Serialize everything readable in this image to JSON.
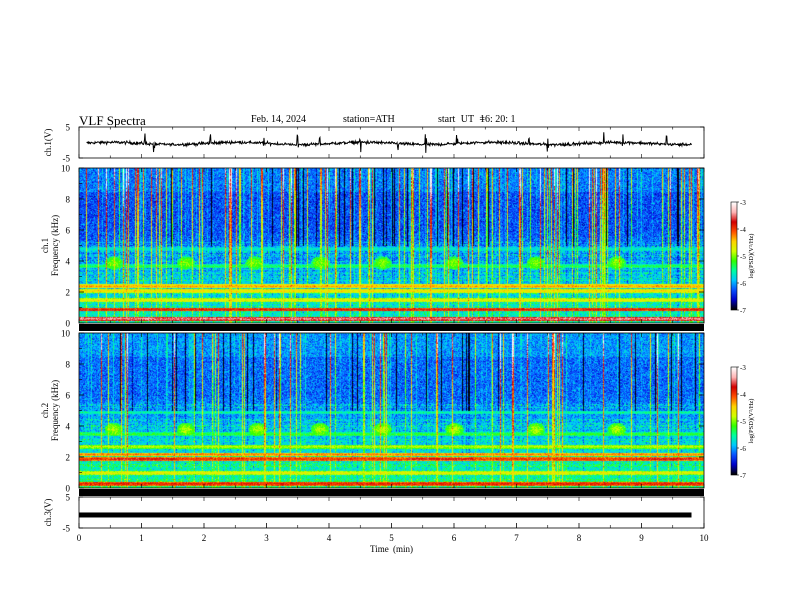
{
  "header": {
    "title": "VLF  Spectra",
    "date": "Feb. 14, 2024",
    "station": "station=ATH",
    "start_label": "start  UT  =",
    "start_time": "16: 20: 1"
  },
  "colors": {
    "axis": "#000000",
    "trace": "#000000",
    "spectrogram_scale": [
      "#000000",
      "#0000c8",
      "#0a50ff",
      "#00c8ff",
      "#00ffa0",
      "#32ff00",
      "#d2ff00",
      "#ffd200",
      "#ff5000",
      "#d20000",
      "#ffb4b4",
      "#ffffff"
    ]
  },
  "chart_data": [
    {
      "id": "ch1-waveform",
      "type": "line",
      "ylabel": "ch.1(V)",
      "ylim": [
        -5,
        5
      ],
      "yticks": [
        "5",
        "-5"
      ],
      "xlim": [
        0,
        10
      ],
      "baseline_v": -0.3,
      "burst_minutes": [
        1.05,
        1.2,
        2.1,
        2.95,
        3.5,
        3.85,
        4.5,
        5.1,
        5.55,
        6.05,
        7.2,
        7.5,
        8.4,
        8.7,
        9.4
      ]
    },
    {
      "id": "ch1-spectrogram",
      "type": "heatmap",
      "ylabel_line1": "ch.1",
      "ylabel_line2": "Frequency (kHz)",
      "ylim": [
        0,
        10
      ],
      "yticks": [
        "10",
        "8",
        "6",
        "4",
        "2",
        "0"
      ],
      "xlim": [
        0,
        10
      ],
      "colorbar": {
        "label": "log(PSD)(V²/Hz)",
        "range": [
          -7,
          -3
        ],
        "ticks": [
          "-3",
          "-4",
          "-5",
          "-6",
          "-7"
        ]
      },
      "background_log_psd": -6.3,
      "bands": [
        {
          "freq_khz": 0.3,
          "log_psd": -3.4
        },
        {
          "freq_khz": 0.9,
          "log_psd": -3.8
        },
        {
          "freq_khz": 1.5,
          "log_psd": -4.6
        },
        {
          "freq_khz": 2.1,
          "log_psd": -4.5
        },
        {
          "freq_khz": 2.4,
          "log_psd": -4.3
        },
        {
          "freq_khz": 3.7,
          "log_psd": -5.3
        },
        {
          "freq_khz": 4.8,
          "log_psd": -5.6
        }
      ],
      "chorus_bursts": [
        {
          "minute": 0.55,
          "freq_khz": 3.9,
          "log_psd": -5.0
        },
        {
          "minute": 1.7,
          "freq_khz": 3.9,
          "log_psd": -5.0
        },
        {
          "minute": 2.8,
          "freq_khz": 3.9,
          "log_psd": -5.0
        },
        {
          "minute": 3.85,
          "freq_khz": 3.9,
          "log_psd": -5.0
        },
        {
          "minute": 4.85,
          "freq_khz": 3.9,
          "log_psd": -5.0
        },
        {
          "minute": 6.0,
          "freq_khz": 3.9,
          "log_psd": -5.0
        },
        {
          "minute": 7.3,
          "freq_khz": 3.9,
          "log_psd": -5.0
        },
        {
          "minute": 8.6,
          "freq_khz": 3.9,
          "log_psd": -5.0
        }
      ],
      "sferic_density": "high"
    },
    {
      "id": "ch2-spectrogram",
      "type": "heatmap",
      "ylabel_line1": "ch.2",
      "ylabel_line2": "Frequency (kHz)",
      "ylim": [
        0,
        10
      ],
      "yticks": [
        "10",
        "8",
        "6",
        "4",
        "2",
        "0"
      ],
      "xlim": [
        0,
        10
      ],
      "colorbar": {
        "label": "log(PSD)(V²/Hz)",
        "range": [
          -7,
          -3
        ],
        "ticks": [
          "-3",
          "-4",
          "-5",
          "-6",
          "-7"
        ]
      },
      "background_log_psd": -6.2,
      "bands": [
        {
          "freq_khz": 0.3,
          "log_psd": -3.8
        },
        {
          "freq_khz": 1.0,
          "log_psd": -4.6
        },
        {
          "freq_khz": 1.9,
          "log_psd": -3.9
        },
        {
          "freq_khz": 2.2,
          "log_psd": -4.2
        },
        {
          "freq_khz": 2.7,
          "log_psd": -4.8
        },
        {
          "freq_khz": 3.5,
          "log_psd": -5.2
        },
        {
          "freq_khz": 4.9,
          "log_psd": -5.5
        }
      ],
      "chorus_bursts": [
        {
          "minute": 0.55,
          "freq_khz": 3.8,
          "log_psd": -4.9
        },
        {
          "minute": 1.7,
          "freq_khz": 3.8,
          "log_psd": -4.9
        },
        {
          "minute": 2.85,
          "freq_khz": 3.8,
          "log_psd": -4.9
        },
        {
          "minute": 3.85,
          "freq_khz": 3.8,
          "log_psd": -4.9
        },
        {
          "minute": 4.85,
          "freq_khz": 3.8,
          "log_psd": -4.9
        },
        {
          "minute": 6.0,
          "freq_khz": 3.8,
          "log_psd": -4.9
        },
        {
          "minute": 7.3,
          "freq_khz": 3.8,
          "log_psd": -4.9
        },
        {
          "minute": 8.6,
          "freq_khz": 3.8,
          "log_psd": -4.9
        }
      ],
      "red_segments": [
        {
          "start_min": 0.5,
          "end_min": 1.55,
          "freq_khz": 1.9
        },
        {
          "start_min": 5.25,
          "end_min": 6.3,
          "freq_khz": 1.9
        },
        {
          "start_min": 9.1,
          "end_min": 9.8,
          "freq_khz": 1.9
        }
      ],
      "sferic_density": "medium"
    },
    {
      "id": "ch3-waveform",
      "type": "line",
      "ylabel": "ch.3(V)",
      "ylim": [
        -5,
        5
      ],
      "yticks": [
        "5",
        "-5"
      ],
      "xlim": [
        0,
        10
      ],
      "xlabel": "Time  (min)",
      "xticks": [
        "0",
        "1",
        "2",
        "3",
        "4",
        "5",
        "6",
        "7",
        "8",
        "9",
        "10"
      ],
      "baseline_v": -0.8
    }
  ]
}
